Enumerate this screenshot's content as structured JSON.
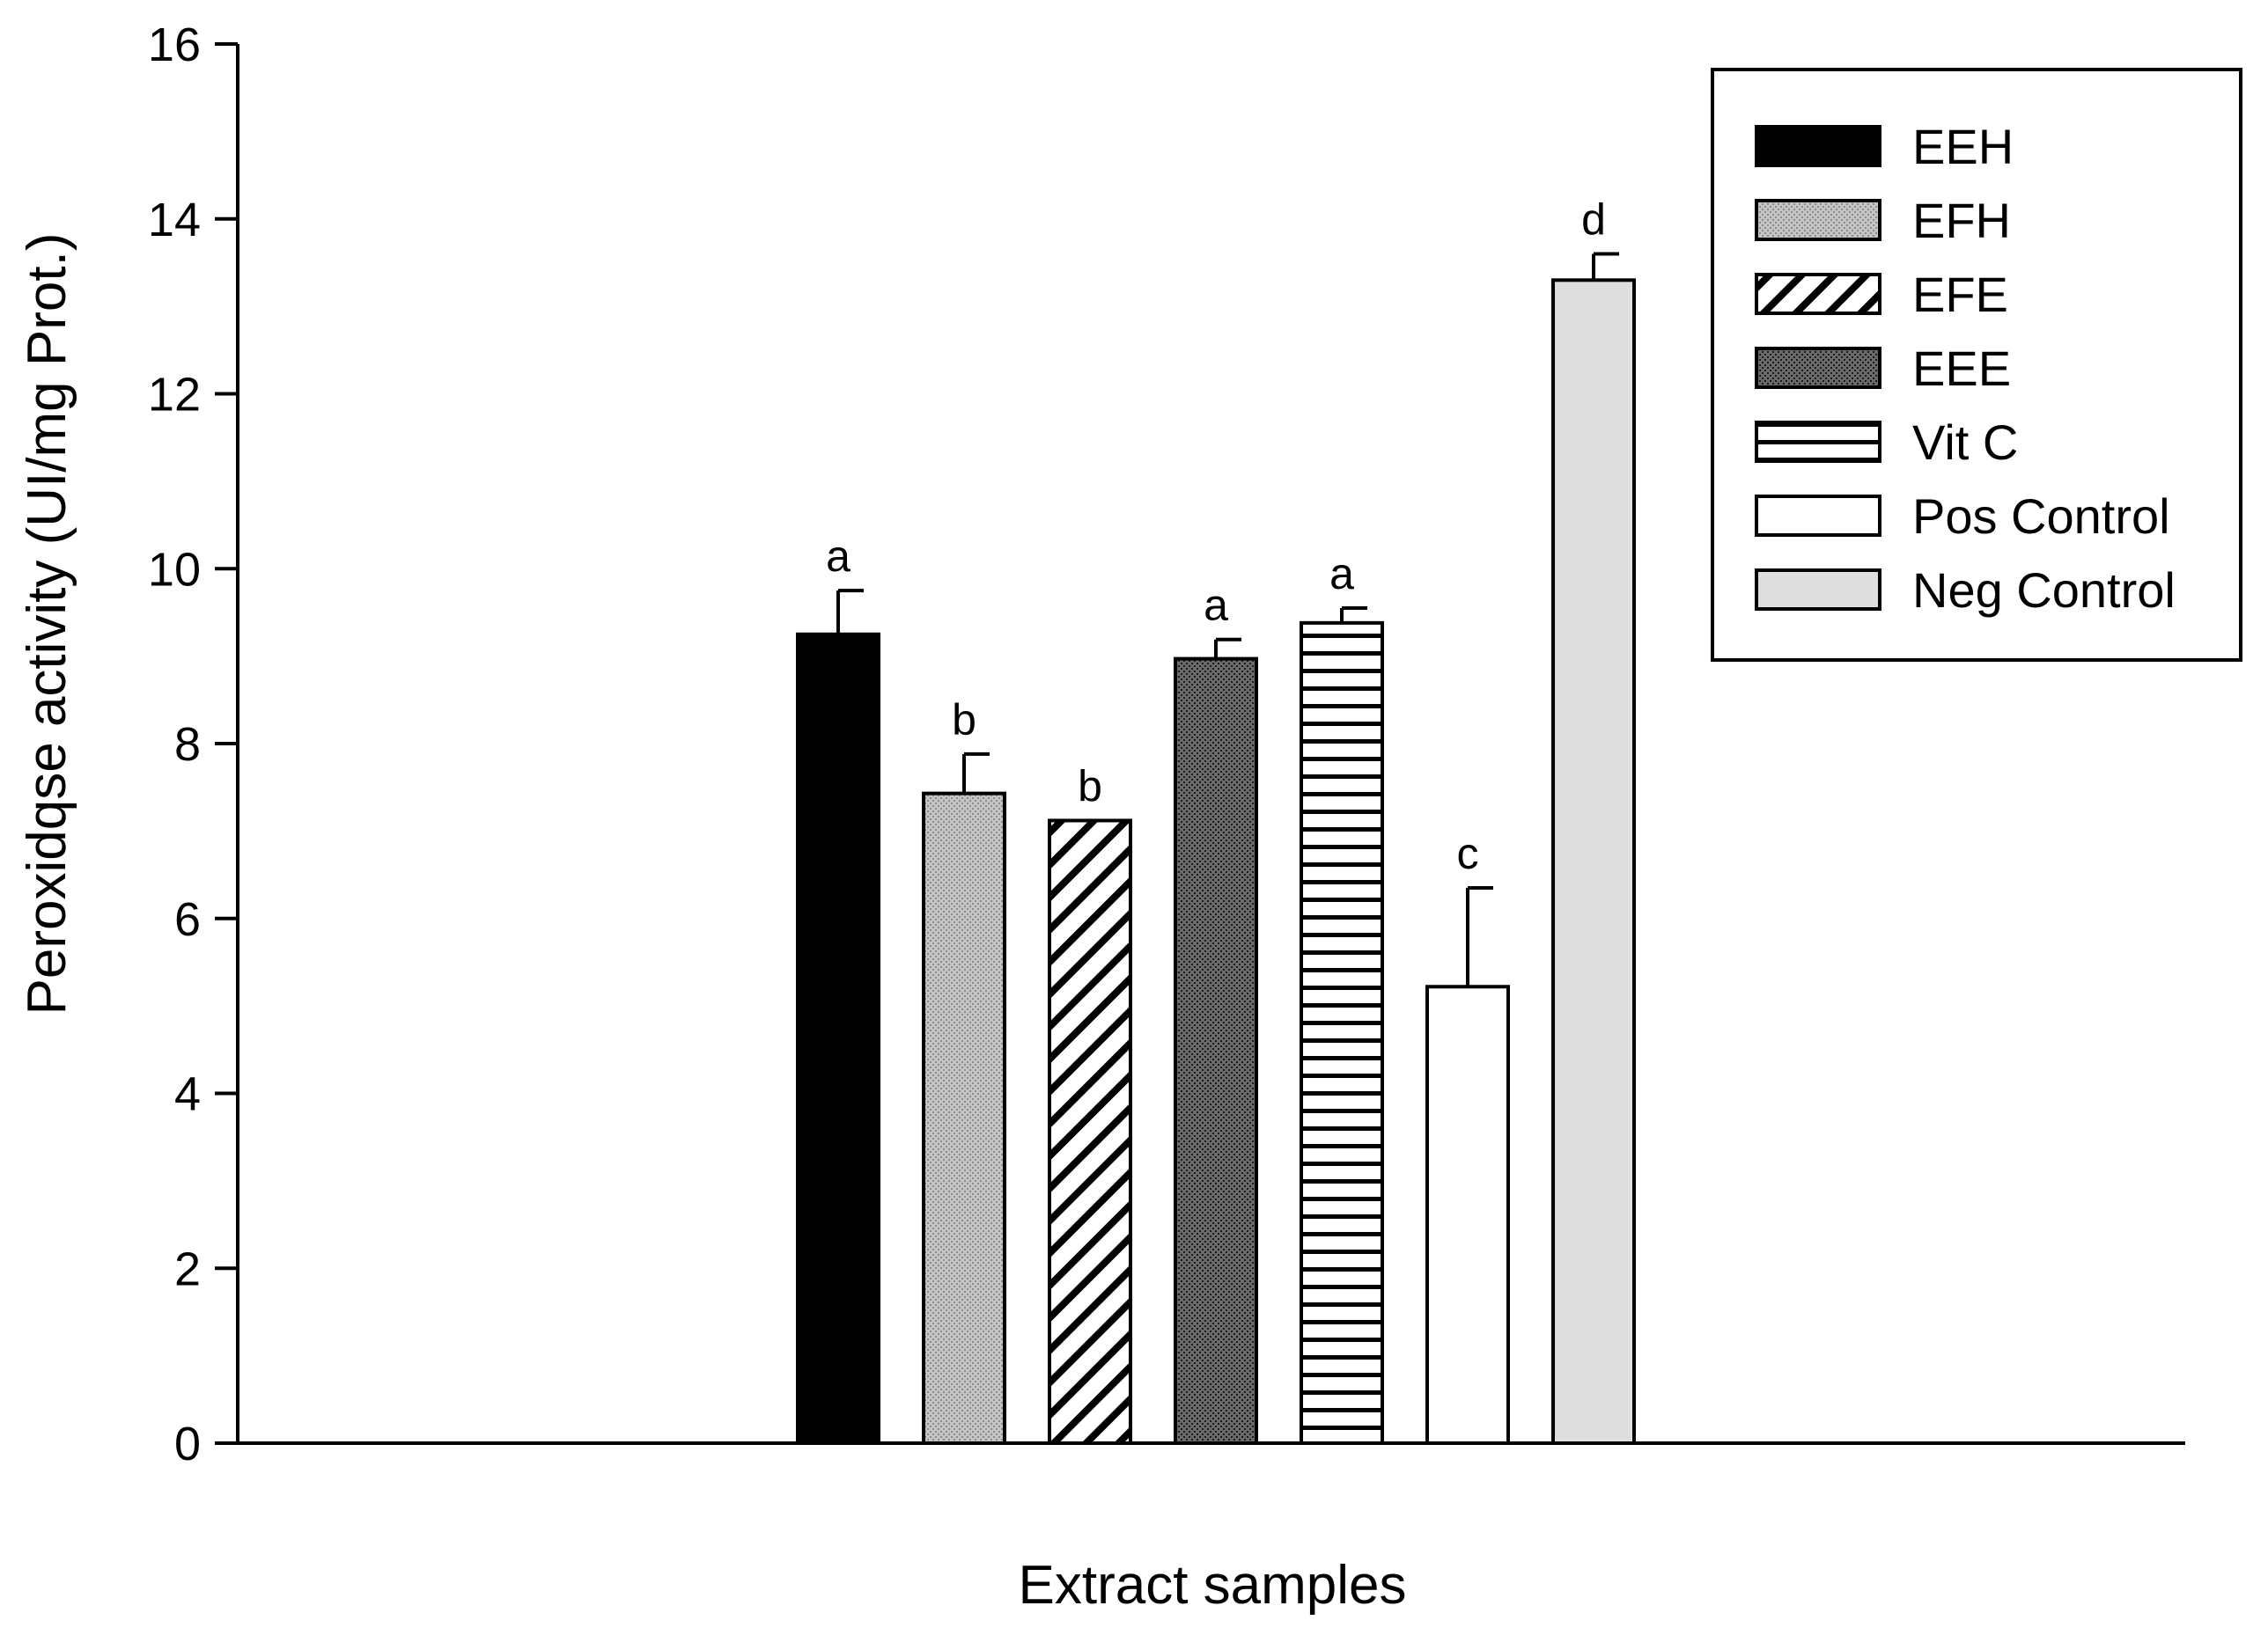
{
  "chart_data": {
    "type": "bar",
    "xlabel": "Extract samples",
    "ylabel": "Peroxidqse activity (UI/mg Prot.)",
    "ylim": [
      0,
      16
    ],
    "yticks": [
      0,
      2,
      4,
      6,
      8,
      10,
      12,
      14,
      16
    ],
    "grid": false,
    "legend_position": "top-right",
    "series": [
      {
        "name": "EEH",
        "value": 9.25,
        "error": 0.5,
        "significance": "a",
        "fill": "solid-black",
        "color": "#000000"
      },
      {
        "name": "EFH",
        "value": 7.43,
        "error": 0.45,
        "significance": "b",
        "fill": "fine-dots-light-gray",
        "color": "#b8b8b8"
      },
      {
        "name": "EFE",
        "value": 7.12,
        "error": 0.0,
        "significance": "b",
        "fill": "diagonal-hatch",
        "color": "#000000"
      },
      {
        "name": "EEE",
        "value": 8.97,
        "error": 0.22,
        "significance": "a",
        "fill": "fine-dots-dark-gray",
        "color": "#5a5a5a"
      },
      {
        "name": "Vit C",
        "value": 9.38,
        "error": 0.17,
        "significance": "a",
        "fill": "horizontal-lines",
        "color": "#000000"
      },
      {
        "name": "Pos Control",
        "value": 5.22,
        "error": 1.13,
        "significance": "c",
        "fill": "white",
        "color": "#ffffff"
      },
      {
        "name": "Neg Control",
        "value": 13.3,
        "error": 0.3,
        "significance": "d",
        "fill": "light-gray",
        "color": "#dedede"
      }
    ]
  }
}
